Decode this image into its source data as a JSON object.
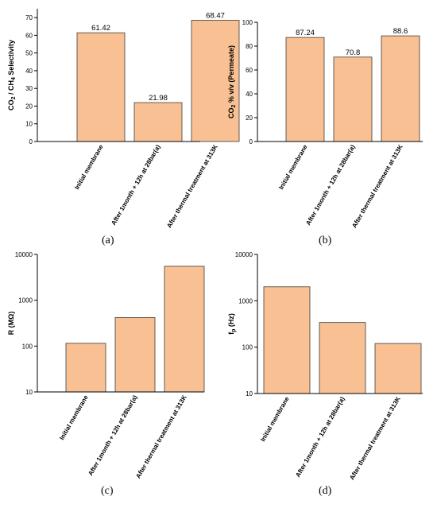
{
  "figure": {
    "panel_labels": [
      "(a)",
      "(b)",
      "(c)",
      "(d)"
    ],
    "colors": {
      "bar_fill": "#f9c193",
      "bar_stroke": "#3a3a3a",
      "axis": "#000000"
    }
  },
  "chart_data": [
    {
      "type": "bar",
      "panel": "(a)",
      "categories": [
        "Initial membrane",
        "After 1month + 12h at 28bar(a)",
        "After thermal treatment at 313K"
      ],
      "values": [
        61.42,
        21.98,
        68.47
      ],
      "data_labels": [
        "61.42",
        "21.98",
        "68.47"
      ],
      "ylabel_parts": [
        "CO",
        "2",
        " / CH",
        "4",
        " Selectivity"
      ],
      "ylim": [
        0,
        75
      ],
      "yticks": [
        0,
        10,
        20,
        30,
        40,
        50,
        60,
        70
      ],
      "log": false,
      "grid": false
    },
    {
      "type": "bar",
      "panel": "(b)",
      "categories": [
        "Initial membrane",
        "After 1month + 12h at 28bar(a)",
        "After thermal treatment at 313K"
      ],
      "values": [
        87.24,
        70.8,
        88.6
      ],
      "data_labels": [
        "87.24",
        "70.8",
        "88.6"
      ],
      "ylabel_parts": [
        "CO",
        "2",
        " % v/v (Permeate)"
      ],
      "ylim": [
        0,
        100
      ],
      "yticks": [
        0,
        20,
        40,
        60,
        80,
        100
      ],
      "log": false,
      "grid": false
    },
    {
      "type": "bar",
      "panel": "(c)",
      "categories": [
        "Initial membrane",
        "After 1month + 12h at 28bar(a)",
        "After thermal treatment at 313K"
      ],
      "values": [
        115,
        420,
        5500
      ],
      "ylabel_parts": [
        "R (MΩ)"
      ],
      "ylim": [
        10,
        10000
      ],
      "yticks": [
        10,
        100,
        1000,
        10000
      ],
      "log": true,
      "grid": false
    },
    {
      "type": "bar",
      "panel": "(d)",
      "categories": [
        "Initial membrane",
        "After 1month + 12h at 28bar(a)",
        "After thermal treatment at 313K"
      ],
      "values": [
        2000,
        340,
        120
      ],
      "ylabel_parts": [
        "f",
        "p",
        " (Hz)"
      ],
      "ylim": [
        10,
        10000
      ],
      "yticks": [
        10,
        100,
        1000,
        10000
      ],
      "log": true,
      "grid": false
    }
  ]
}
